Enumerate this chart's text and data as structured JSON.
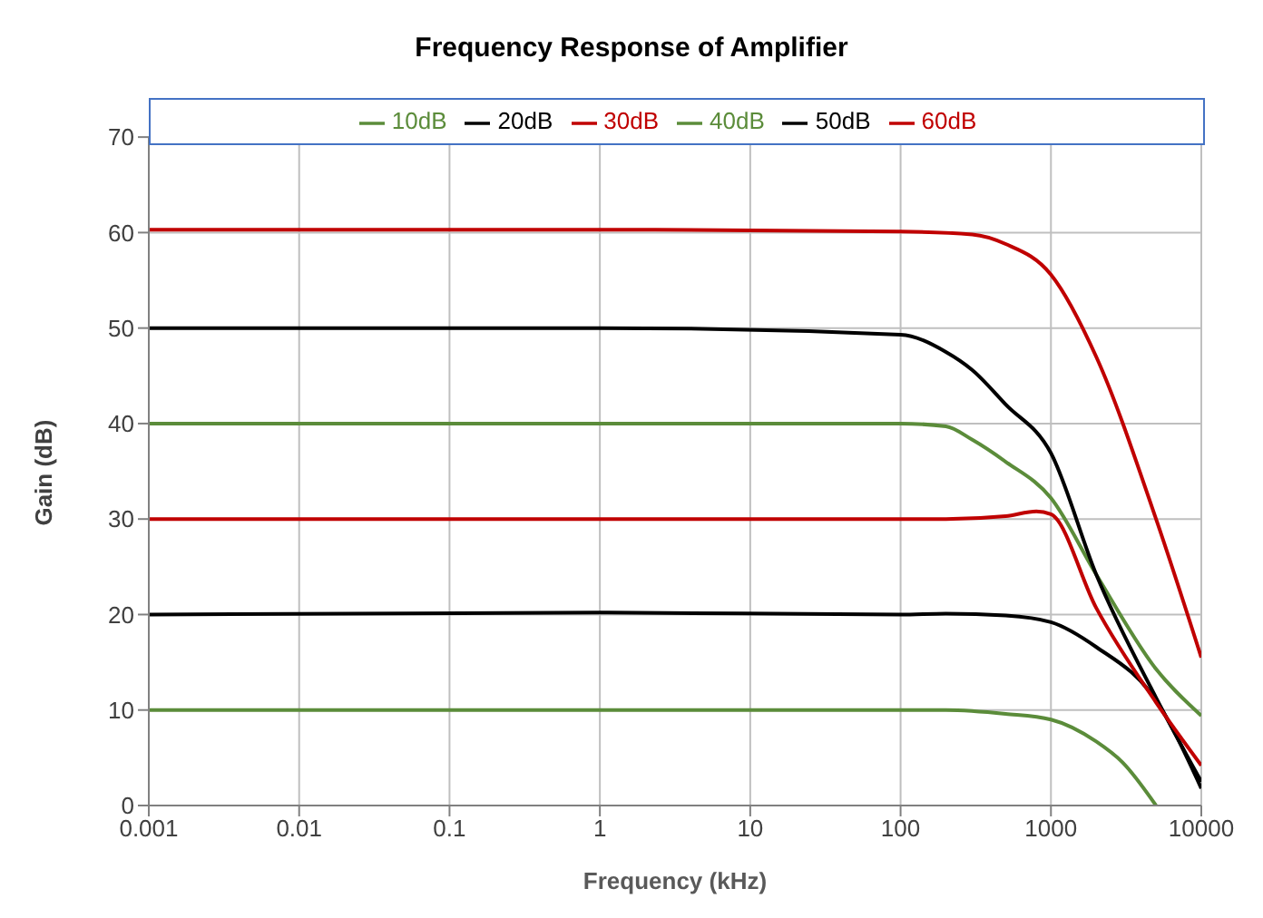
{
  "chart_data": {
    "type": "line",
    "title": "Frequency Response of Amplifier",
    "xlabel": "Frequency (kHz)",
    "ylabel": "Gain (dB)",
    "log": "x",
    "xlim": [
      0.001,
      10000
    ],
    "xticks": [
      0.001,
      0.01,
      0.1,
      1,
      10,
      100,
      1000,
      10000
    ],
    "ylim": [
      0,
      70
    ],
    "yticks": [
      0,
      10,
      20,
      30,
      40,
      50,
      60,
      70
    ],
    "grid": true,
    "legend": "top",
    "marker": "none",
    "line_style": "solid",
    "series": [
      {
        "name": "10dB",
        "color": "#5b8c3a",
        "x": [
          0.001,
          1,
          100,
          200,
          500,
          1000,
          2000,
          3000,
          5000
        ],
        "values": [
          10,
          10,
          10,
          10,
          9.6,
          9,
          6.7,
          4.5,
          0
        ]
      },
      {
        "name": "40dB",
        "color": "#5b8c3a",
        "x": [
          0.001,
          1,
          100,
          200,
          300,
          500,
          1000,
          2000,
          5000,
          10000
        ],
        "values": [
          40,
          40,
          40,
          39.7,
          38.3,
          36,
          32.2,
          24.2,
          14.3,
          9.4
        ]
      },
      {
        "name": "20dB",
        "color": "#000000",
        "x": [
          0.001,
          1,
          100,
          200,
          500,
          1000,
          2000,
          5000,
          10000
        ],
        "values": [
          20,
          20.2,
          20,
          20.1,
          19.9,
          19.2,
          16.6,
          11,
          1.8
        ]
      },
      {
        "name": "50dB",
        "color": "#000000",
        "x": [
          0.001,
          1,
          100,
          200,
          300,
          500,
          1000,
          2000,
          5000,
          10000
        ],
        "values": [
          50,
          50,
          49.3,
          47.5,
          45.6,
          42,
          36.9,
          24.2,
          11.3,
          2.5
        ]
      },
      {
        "name": "30dB",
        "color": "#c00000",
        "x": [
          0.001,
          1,
          100,
          200,
          500,
          800,
          1000,
          2000,
          5000,
          10000
        ],
        "values": [
          30,
          30,
          30,
          30,
          30.3,
          30.8,
          30.5,
          20.7,
          10.8,
          4.2
        ]
      },
      {
        "name": "60dB",
        "color": "#c00000",
        "x": [
          0.001,
          1,
          100,
          300,
          500,
          1000,
          2000,
          5000,
          10000
        ],
        "values": [
          60.3,
          60.3,
          60.1,
          59.8,
          58.8,
          55.6,
          47,
          30,
          15.5
        ]
      }
    ]
  }
}
